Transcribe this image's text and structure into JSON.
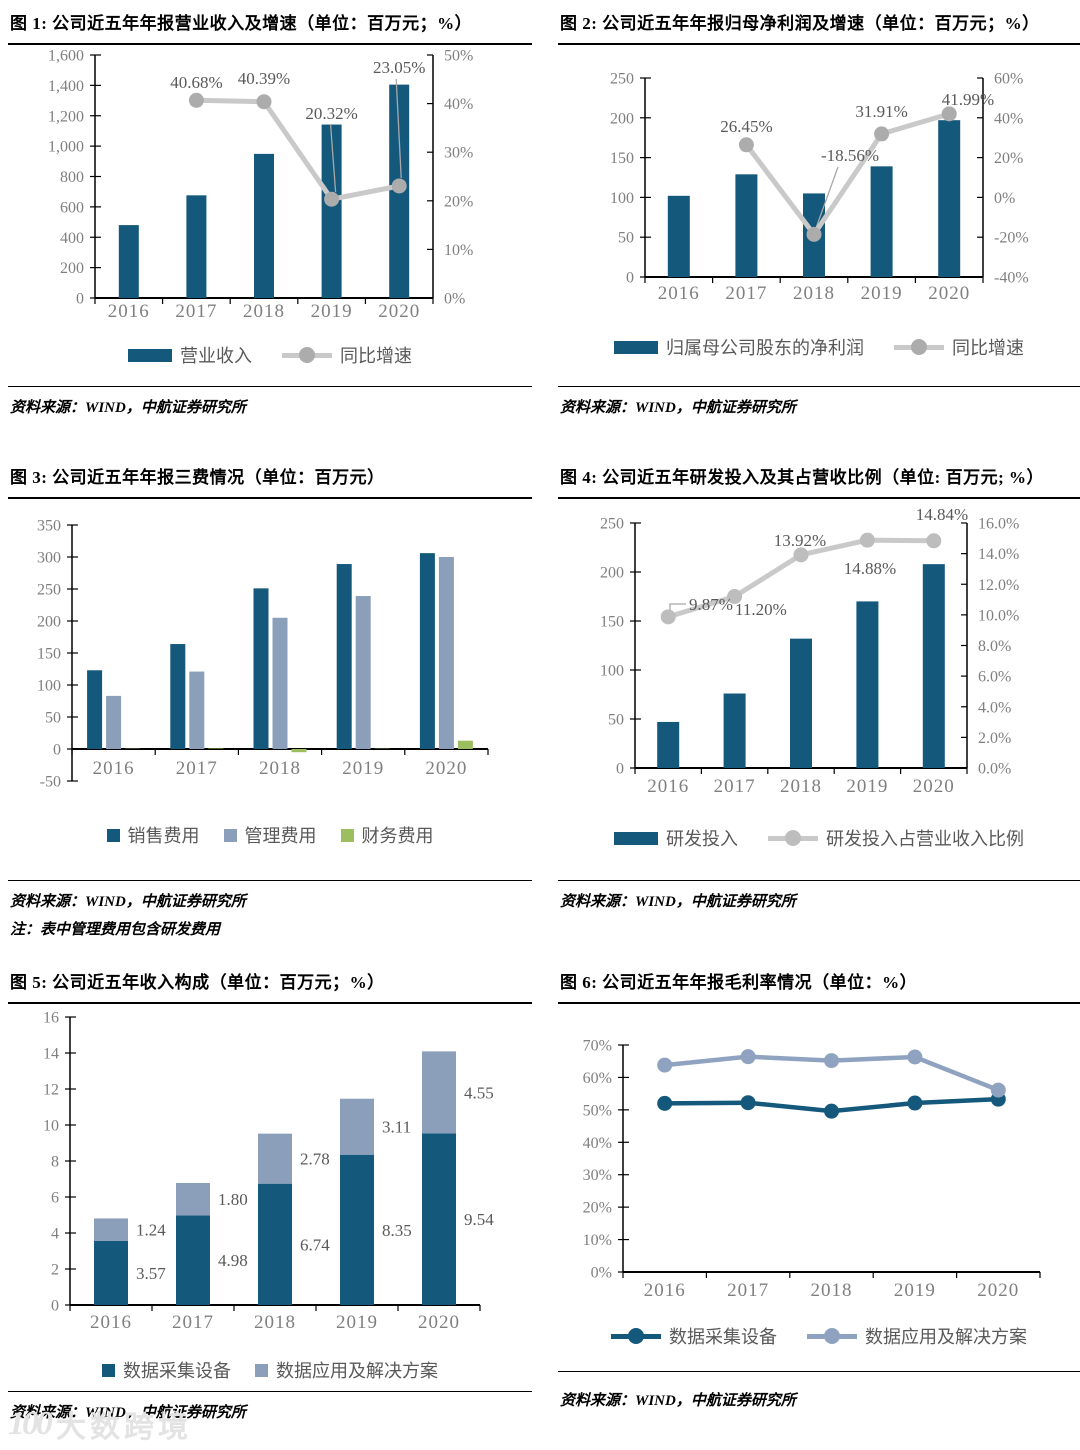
{
  "watermark": {
    "logo": "100",
    "text": "大数跨境"
  },
  "chart_data": [
    {
      "id": "fig1",
      "type": "bar+line",
      "title": "图 1:  公司近五年年报营业收入及增速（单位：百万元；%）",
      "source": "资料来源：WIND，中航证券研究所",
      "categories": [
        "2016",
        "2017",
        "2018",
        "2019",
        "2020"
      ],
      "bar_series": [
        {
          "name": "营业收入",
          "color": "#14587C",
          "values": [
            480,
            676,
            949,
            1142,
            1405
          ]
        }
      ],
      "line_series": [
        {
          "name": "同比增速",
          "color": "#C9C9C9",
          "marker_color": "#ACACAC",
          "axis": "right",
          "values": [
            null,
            40.68,
            40.39,
            20.32,
            23.05
          ],
          "labels": [
            null,
            "40.68%",
            "40.39%",
            "20.32%",
            "23.05%"
          ]
        }
      ],
      "left_axis": {
        "min": 0,
        "max": 1600,
        "step": 200,
        "format": "comma"
      },
      "right_axis": {
        "min": 0,
        "max": 50,
        "step": 10,
        "format": "percent"
      },
      "legend_swatch": "wide",
      "legend_position": "bottom",
      "grid": false
    },
    {
      "id": "fig2",
      "type": "bar+line",
      "title": "图 2:  公司近五年年报归母净利润及增速（单位：百万元；%）",
      "source": "资料来源：WIND，中航证券研究所",
      "categories": [
        "2016",
        "2017",
        "2018",
        "2019",
        "2020"
      ],
      "bar_series": [
        {
          "name": "归属母公司股东的净利润",
          "color": "#14587C",
          "values": [
            102,
            129,
            105,
            139,
            197
          ]
        }
      ],
      "line_series": [
        {
          "name": "同比增速",
          "color": "#C9C9C9",
          "marker_color": "#ACACAC",
          "axis": "right",
          "values": [
            null,
            26.45,
            -18.56,
            31.91,
            41.99
          ],
          "labels": [
            null,
            "26.45%",
            "-18.56%",
            "31.91%",
            "41.99%"
          ]
        }
      ],
      "left_axis": {
        "min": 0,
        "max": 250,
        "step": 50,
        "format": "plain"
      },
      "right_axis": {
        "min": -40,
        "max": 60,
        "step": 20,
        "format": "percent"
      },
      "legend_swatch": "wide",
      "legend_position": "bottom",
      "grid": false
    },
    {
      "id": "fig3",
      "type": "grouped-bar",
      "title": "图 3:  公司近五年年报三费情况（单位：百万元）",
      "source": "资料来源：WIND，中航证券研究所",
      "note": "注：表中管理费用包含研发费用",
      "categories": [
        "2016",
        "2017",
        "2018",
        "2019",
        "2020"
      ],
      "bar_series": [
        {
          "name": "销售费用",
          "color": "#14587C",
          "values": [
            123,
            164,
            251,
            289,
            306
          ]
        },
        {
          "name": "管理费用",
          "color": "#8C9FBA",
          "values": [
            83,
            121,
            205,
            239,
            300
          ]
        },
        {
          "name": "财务费用",
          "color": "#9CBE5F",
          "values": [
            0.5,
            0.8,
            -5,
            0.5,
            13
          ]
        }
      ],
      "line_series": [],
      "left_axis": {
        "min": -50,
        "max": 350,
        "step": 50,
        "format": "plain"
      },
      "legend_swatch": "square",
      "legend_position": "bottom",
      "grid": false
    },
    {
      "id": "fig4",
      "type": "bar+line",
      "title": "图 4: 公司近五年研发投入及其占营收比例（单位: 百万元; %）",
      "source": "资料来源：WIND，中航证券研究所",
      "categories": [
        "2016",
        "2017",
        "2018",
        "2019",
        "2020"
      ],
      "bar_series": [
        {
          "name": "研发投入",
          "color": "#14587C",
          "values": [
            47,
            76,
            132,
            170,
            208
          ]
        }
      ],
      "line_series": [
        {
          "name": "研发投入占营业收入比例",
          "color": "#C9C9C9",
          "marker_color": "#BDBDBD",
          "axis": "right",
          "values": [
            9.87,
            11.2,
            13.92,
            14.88,
            14.84
          ],
          "labels": [
            "9.87%",
            "11.20%",
            "13.92%",
            "14.88%",
            "14.84%"
          ]
        }
      ],
      "left_axis": {
        "min": 0,
        "max": 250,
        "step": 50,
        "format": "plain"
      },
      "right_axis": {
        "min": 0,
        "max": 16,
        "step": 2,
        "format": "percent1"
      },
      "legend_swatch": "wide",
      "legend_position": "bottom",
      "grid": false
    },
    {
      "id": "fig5",
      "type": "stacked-bar",
      "title": "图 5:  公司近五年收入构成（单位：百万元；%）",
      "source": "资料来源：WIND，中航证券研究所",
      "categories": [
        "2016",
        "2017",
        "2018",
        "2019",
        "2020"
      ],
      "bar_series": [
        {
          "name": "数据采集设备",
          "color": "#14587C",
          "values": [
            3.57,
            4.98,
            6.74,
            8.35,
            9.54
          ],
          "labels": [
            "3.57",
            "4.98",
            "6.74",
            "8.35",
            "9.54"
          ]
        },
        {
          "name": "数据应用及解决方案",
          "color": "#8C9FBA",
          "values": [
            1.24,
            1.8,
            2.78,
            3.11,
            4.55
          ],
          "labels": [
            "1.24",
            "1.80",
            "2.78",
            "3.11",
            "4.55"
          ]
        }
      ],
      "line_series": [],
      "left_axis": {
        "min": 0,
        "max": 16,
        "step": 2,
        "format": "plain"
      },
      "legend_swatch": "square",
      "legend_position": "bottom",
      "grid": false
    },
    {
      "id": "fig6",
      "type": "line",
      "title": "图 6:  公司近五年年报毛利率情况（单位：%）",
      "source": "资料来源：WIND，中航证券研究所",
      "categories": [
        "2016",
        "2017",
        "2018",
        "2019",
        "2020"
      ],
      "bar_series": [],
      "line_series": [
        {
          "name": "数据采集设备",
          "color": "#14587C",
          "values": [
            52.0,
            52.2,
            49.6,
            52.1,
            53.3
          ],
          "labels": []
        },
        {
          "name": "数据应用及解决方案",
          "color": "#8FA3C1",
          "values": [
            63.8,
            66.4,
            65.2,
            66.3,
            56.1
          ],
          "labels": []
        }
      ],
      "left_axis": {
        "min": 0,
        "max": 70,
        "step": 10,
        "format": "percent"
      },
      "legend_swatch": "wide",
      "legend_position": "bottom",
      "grid": false
    }
  ]
}
